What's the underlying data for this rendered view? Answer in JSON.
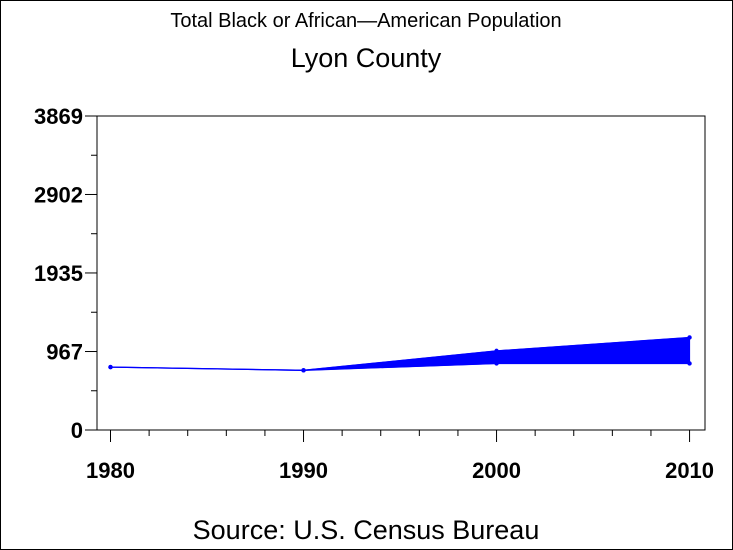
{
  "chart_data": {
    "type": "area",
    "title": "Total Black or African—American Population",
    "subtitle": "Lyon County",
    "footnote": "Source: U.S. Census Bureau",
    "xlabel": "",
    "ylabel": "",
    "x": [
      1980,
      1990,
      2000,
      2010
    ],
    "x_tick_labels": [
      "1980",
      "1990",
      "2000",
      "2010"
    ],
    "xlim": [
      1979.3,
      2010.8
    ],
    "x_minor_step": 2,
    "y_tick_values": [
      0,
      967,
      1935,
      2902,
      3869
    ],
    "y_tick_labels": [
      "0",
      "967",
      "1935",
      "2902",
      "3869"
    ],
    "ylim": [
      0,
      3869
    ],
    "y_minor_per_major": 2,
    "grid": false,
    "legend": "none",
    "series": [
      {
        "values": [
          775,
          735,
          975,
          1140
        ]
      },
      {
        "values": [
          775,
          735,
          820,
          820
        ]
      }
    ],
    "fill_between_from": 1990,
    "colors": {
      "series": "#0000ff",
      "axis": "#000000"
    }
  }
}
